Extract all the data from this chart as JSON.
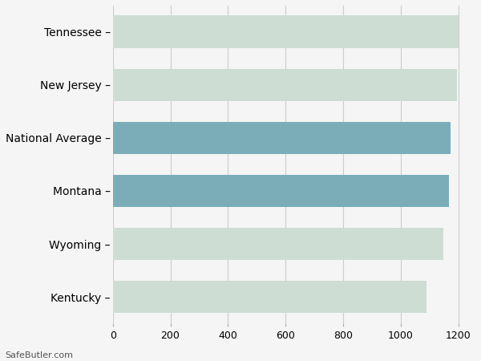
{
  "categories": [
    "Tennessee",
    "New Jersey",
    "National Average",
    "Montana",
    "Wyoming",
    "Kentucky"
  ],
  "values": [
    1200,
    1196,
    1173,
    1168,
    1148,
    1090
  ],
  "bar_colors": [
    "#cdddd4",
    "#cdddd4",
    "#7aadb8",
    "#7aadb8",
    "#cdddd4",
    "#cdddd4"
  ],
  "background_color": "#f5f5f5",
  "xlim": [
    0,
    1260
  ],
  "xticks": [
    0,
    200,
    400,
    600,
    800,
    1000,
    1200
  ],
  "bar_height": 0.62,
  "grid_color": "#cccccc",
  "label_fontsize": 10,
  "tick_fontsize": 9,
  "watermark": "SafeButler.com",
  "figsize": [
    6.0,
    4.5
  ],
  "dpi": 100
}
